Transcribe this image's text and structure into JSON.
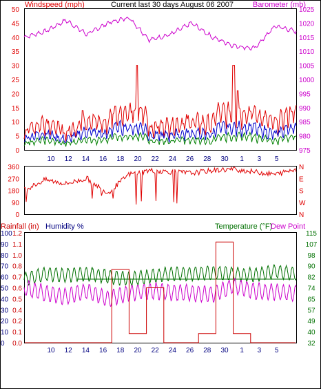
{
  "colors": {
    "wind": "#e00000",
    "wind_avg": "#0000cc",
    "wind_green": "#008000",
    "baro": "#cc00cc",
    "dir": "#e00000",
    "rain": "#cc0000",
    "hum": "#000080",
    "temp": "#007000",
    "dew": "#cc00cc",
    "title": "#000000"
  },
  "chart_data": [
    {
      "type": "line",
      "title": "Current last 30 days August 06 2007",
      "ylabel": "Windspeed (mph)",
      "y2label": "Barometer (mb)",
      "ylim": [
        0,
        50
      ],
      "y2lim": [
        975,
        1025
      ],
      "yticks": [
        "0",
        "5",
        "10",
        "15",
        "20",
        "25",
        "30",
        "35",
        "40",
        "45",
        "50"
      ],
      "y2ticks": [
        "975",
        "980",
        "985",
        "990",
        "995",
        "1000",
        "1005",
        "1010",
        "1015",
        "1020",
        "1025"
      ],
      "x": [
        "10",
        "12",
        "14",
        "16",
        "18",
        "20",
        "22",
        "24",
        "26",
        "28",
        "30",
        "1",
        "3",
        "5"
      ],
      "series": [
        {
          "name": "Barometer",
          "axis": "right",
          "values": [
            1015,
            1017,
            1021,
            1016,
            1020,
            1022,
            1014,
            1016,
            1020,
            1015,
            1012,
            1011,
            1019,
            1017
          ]
        },
        {
          "name": "Windspeed",
          "axis": "left",
          "values": [
            6,
            9,
            5,
            10,
            8,
            31,
            7,
            8,
            9,
            8,
            31,
            12,
            8,
            14
          ]
        }
      ]
    },
    {
      "type": "line",
      "ylabel": "",
      "ylim": [
        0,
        360
      ],
      "yticks": [
        "0",
        "90",
        "180",
        "270",
        "360"
      ],
      "y2ticks": [
        "N",
        "E",
        "S",
        "W",
        "N"
      ],
      "series": [
        {
          "name": "Wind Direction",
          "values": [
            180,
            260,
            230,
            270,
            160,
            300,
            330,
            320,
            310,
            330,
            340,
            320,
            300,
            340
          ]
        }
      ]
    },
    {
      "type": "line",
      "legend": [
        "Rainfall (in)",
        "Humidity %",
        "Temperature (°F)",
        "Dew Point"
      ],
      "ylabel": "Rainfall (in)",
      "y2label": "Temperature (°F)",
      "yticks_rain": [
        "0.0",
        "0.1",
        "0.2",
        "0.4",
        "0.5",
        "0.6",
        "0.7",
        "0.8",
        "1.0",
        "1.1",
        "1.2"
      ],
      "yticks_hum": [
        "0",
        "10",
        "20",
        "30",
        "40",
        "50",
        "60",
        "70",
        "80",
        "90",
        "100"
      ],
      "y2ticks": [
        "32",
        "40",
        "49",
        "57",
        "65",
        "74",
        "82",
        "90",
        "98",
        "107",
        "115"
      ],
      "ylim_hum": [
        0,
        100
      ],
      "y2lim": [
        32,
        115
      ],
      "x": [
        "10",
        "12",
        "14",
        "16",
        "18",
        "20",
        "22",
        "24",
        "26",
        "28",
        "30",
        "1",
        "3",
        "5"
      ],
      "series": [
        {
          "name": "Temperature (°F)",
          "axis": "right",
          "values": [
            80,
            84,
            83,
            84,
            82,
            80,
            82,
            84,
            84,
            85,
            84,
            83,
            86,
            84
          ]
        },
        {
          "name": "Humidity %",
          "axis": "left",
          "values": [
            50,
            45,
            42,
            47,
            40,
            45,
            47,
            46,
            45,
            44,
            52,
            47,
            46,
            45
          ]
        },
        {
          "name": "Rainfall (in)",
          "axis": "left",
          "values": [
            0.0,
            0.0,
            0.0,
            0.0,
            0.8,
            0.1,
            0.6,
            0.0,
            0.0,
            0.1,
            1.1,
            0.1,
            0.0,
            0.0
          ]
        }
      ]
    }
  ]
}
